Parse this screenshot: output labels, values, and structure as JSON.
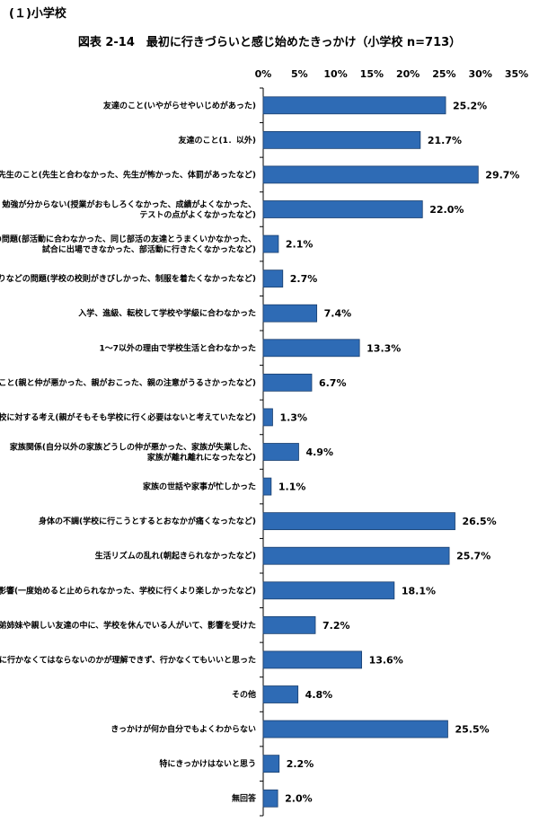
{
  "section_heading": "(１)小学校",
  "chart_data": {
    "type": "bar",
    "orientation": "horizontal",
    "title": "図表 2-14　最初に行きづらいと感じ始めたきっかけ（小学校 n=713）",
    "xlim": [
      0,
      35
    ],
    "xticks": [
      "0%",
      "5%",
      "10%",
      "15%",
      "20%",
      "25%",
      "30%",
      "35%"
    ],
    "grid": false,
    "bar_color": "#2E6BB5",
    "categories": [
      [
        "友達のこと(いやがらせやいじめがあった)"
      ],
      [
        "友達のこと(1．以外)"
      ],
      [
        "先生のこと(先生と合わなかった、先生が怖かった、体罰があったなど)"
      ],
      [
        "勉強が分からない(授業がおもしろくなかった、成績がよくなかった、",
        "テストの点がよくなかったなど)"
      ],
      [
        "部活動の問題(部活動に合わなかった、同じ部活の友達とうまくいかなかった、",
        "試合に出場できなかった、部活動に行きたくなかったなど)"
      ],
      [
        "学校のきまりなどの問題(学校の校則がきびしかった、制服を着たくなかったなど)"
      ],
      [
        "入学、進級、転校して学校や学級に合わなかった"
      ],
      [
        "1～7以外の理由で学校生活と合わなかった"
      ],
      [
        "親のこと(親と仲が悪かった、親がおこった、親の注意がうるさかったなど)"
      ],
      [
        "親の学校に対する考え(親がそもそも学校に行く必要はないと考えていたなど)"
      ],
      [
        "家族関係(自分以外の家族どうしの仲が悪かった、家族が失業した、",
        "家族が離れ離れになったなど)"
      ],
      [
        "家族の世話や家事が忙しかった"
      ],
      [
        "身体の不調(学校に行こうとするとおなかが痛くなったなど)"
      ],
      [
        "生活リズムの乱れ(朝起きられなかったなど)"
      ],
      [
        "インターネット、ゲーム、動画視聴、SNS(LINEやツイッターなど)などの影響(一度始めると止められなかった、学校に行くより楽しかったなど)"
      ],
      [
        "兄弟姉妹や親しい友達の中に、学校を休んでいる人がいて、影響を受けた"
      ],
      [
        "なぜ学校に行かなくてはならないのかが理解できず、行かなくてもいいと思った"
      ],
      [
        "その他"
      ],
      [
        "きっかけが何か自分でもよくわからない"
      ],
      [
        "特にきっかけはないと思う"
      ],
      [
        "無回答"
      ]
    ],
    "values": [
      25.2,
      21.7,
      29.7,
      22.0,
      2.1,
      2.7,
      7.4,
      13.3,
      6.7,
      1.3,
      4.9,
      1.1,
      26.5,
      25.7,
      18.1,
      7.2,
      13.6,
      4.8,
      25.5,
      2.2,
      2.0
    ],
    "value_labels": [
      "25.2%",
      "21.7%",
      "29.7%",
      "22.0%",
      "2.1%",
      "2.7%",
      "7.4%",
      "13.3%",
      "6.7%",
      "1.3%",
      "4.9%",
      "1.1%",
      "26.5%",
      "25.7%",
      "18.1%",
      "7.2%",
      "13.6%",
      "4.8%",
      "25.5%",
      "2.2%",
      "2.0%"
    ]
  }
}
